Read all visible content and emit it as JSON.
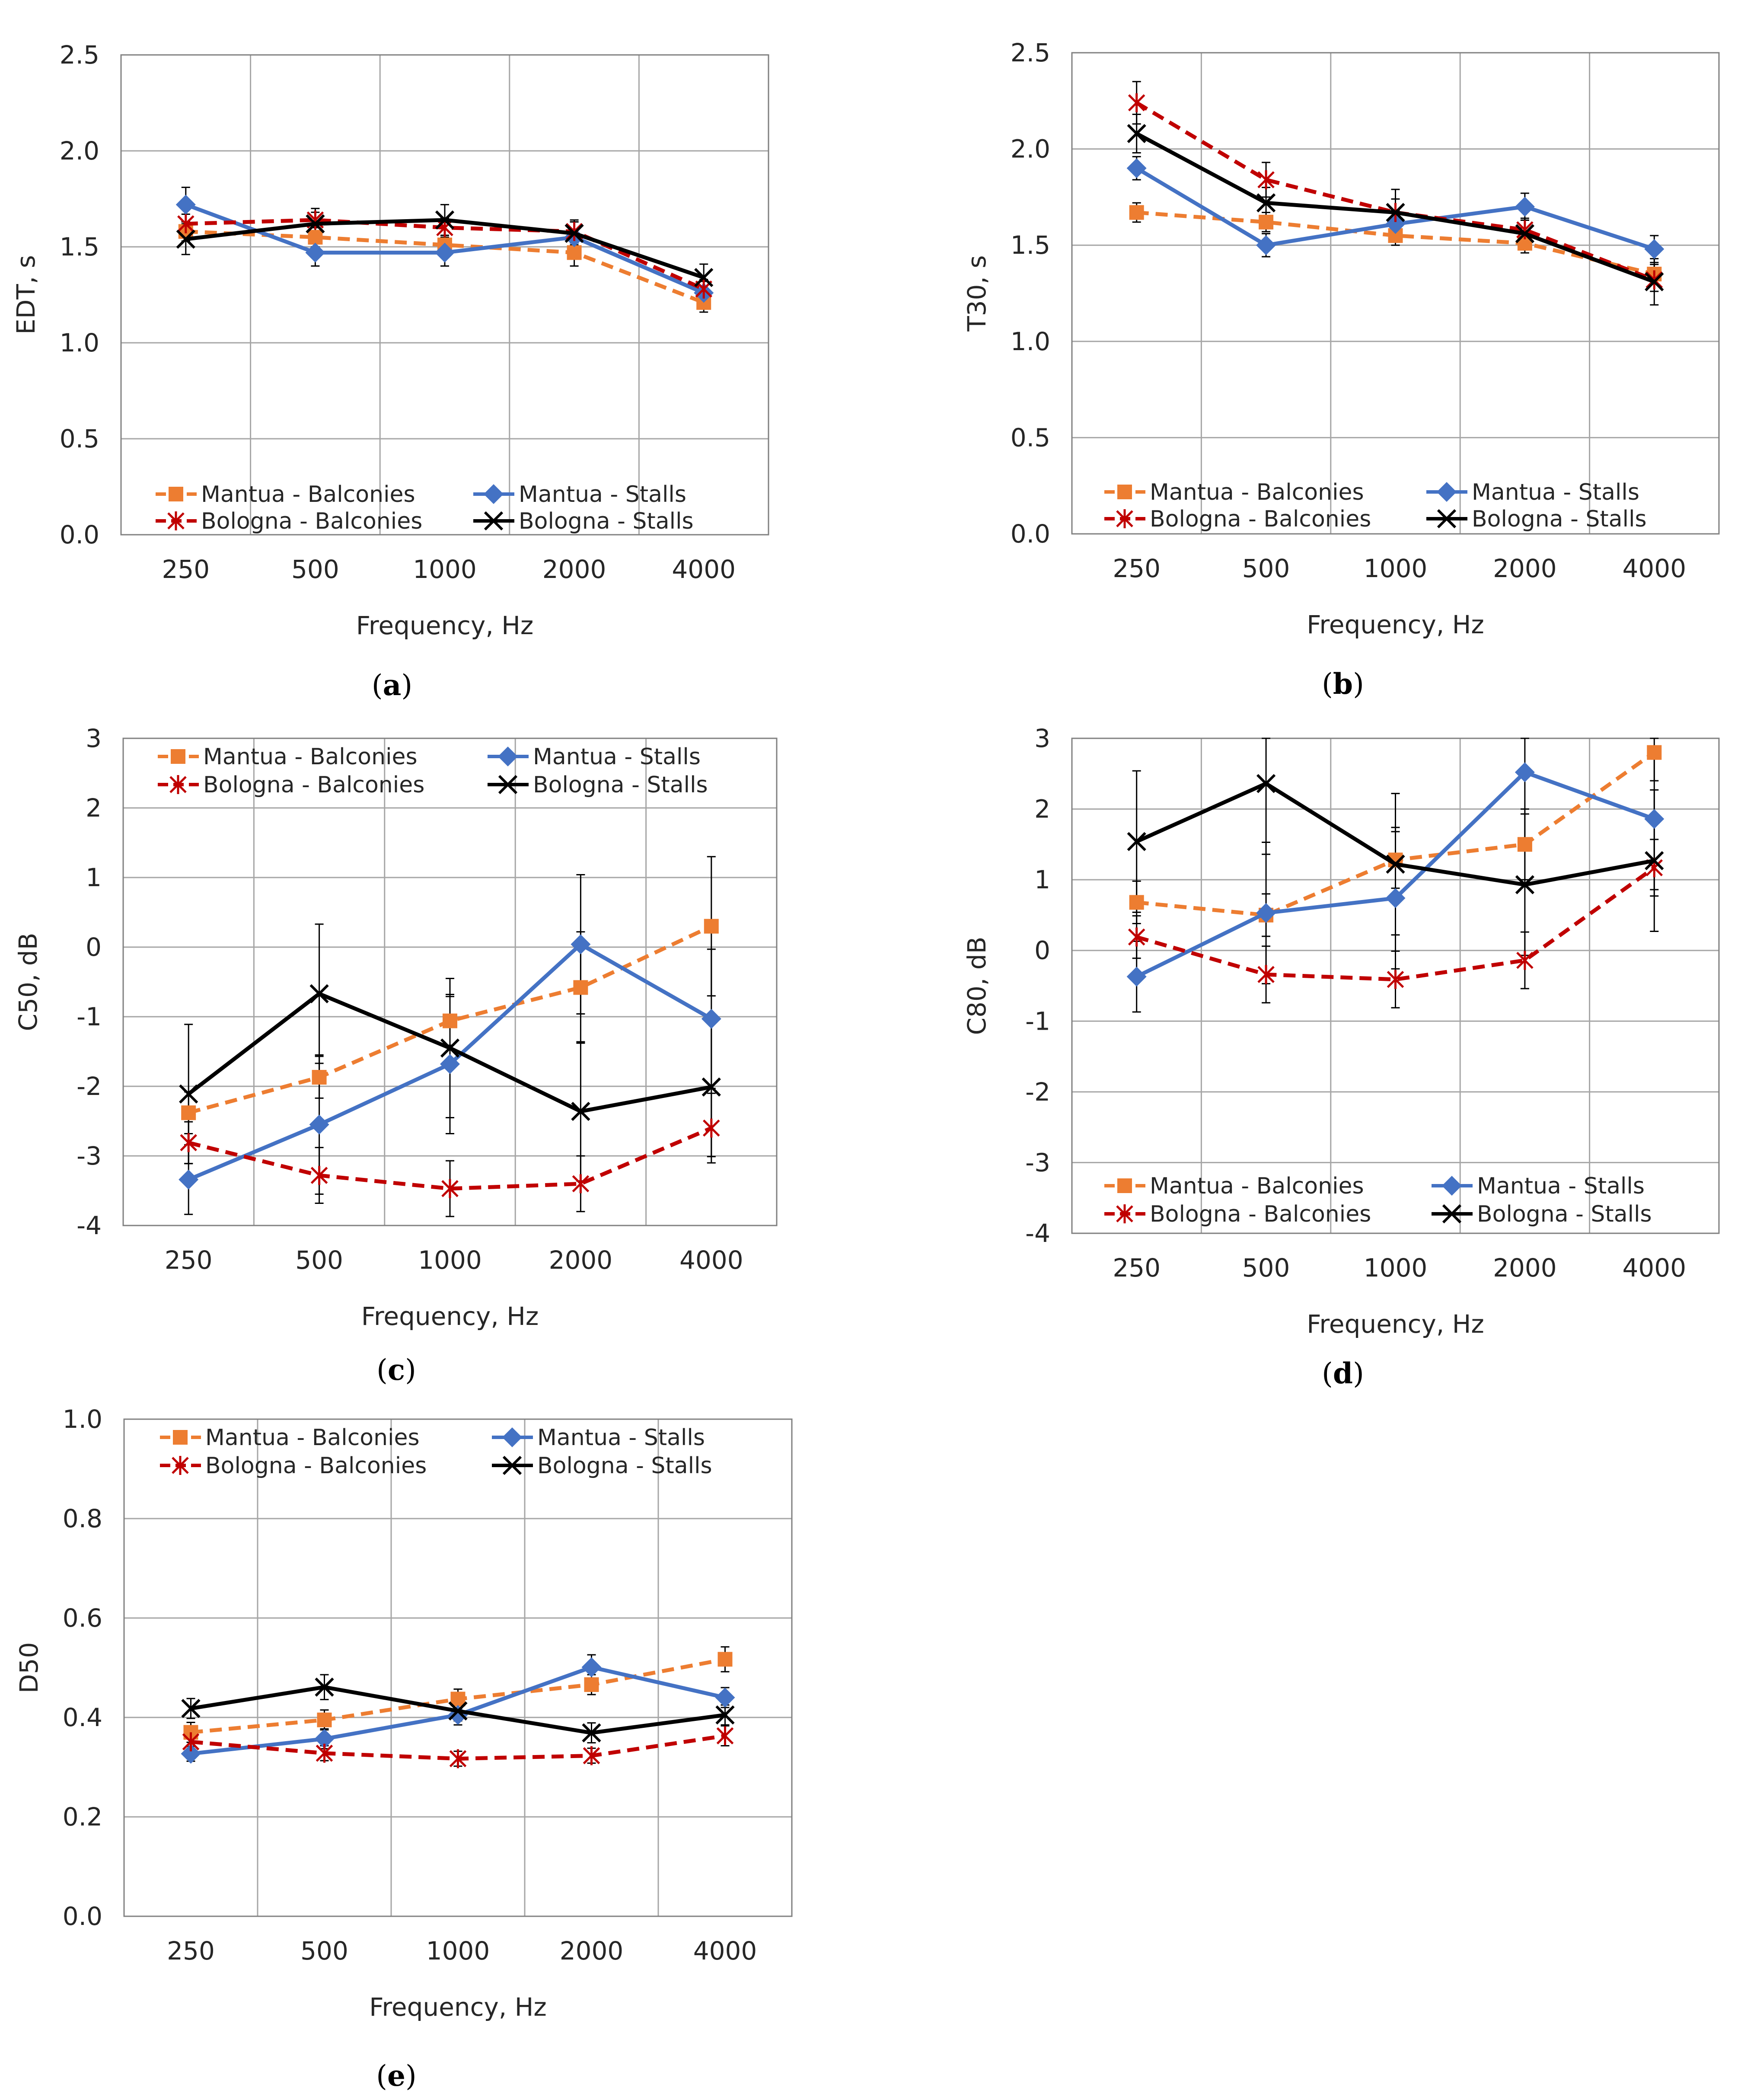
{
  "styles": {
    "mantua_balconies": {
      "color": "#ED7D31",
      "dash": "dashed",
      "marker": "square"
    },
    "mantua_stalls": {
      "color": "#4472C4",
      "dash": "solid",
      "marker": "diamond"
    },
    "bologna_balconies": {
      "color": "#C00000",
      "dash": "dashed",
      "marker": "asterisk"
    },
    "bologna_stalls": {
      "color": "#000000",
      "dash": "solid",
      "marker": "x"
    },
    "grid_color": "#A6A6A6",
    "frame_color": "#808080",
    "errorbar_color": "#000000"
  },
  "chart_data": [
    {
      "id": "a",
      "type": "line",
      "caption": "a",
      "categories": [
        "250",
        "500",
        "1000",
        "2000",
        "4000"
      ],
      "xlabel": "Frequency, Hz",
      "ylabel": "EDT, s",
      "ylim": [
        0,
        2.5
      ],
      "yticks": [
        "0.0",
        "0.5",
        "1.0",
        "1.5",
        "2.0",
        "2.5"
      ],
      "ystep": 0.5,
      "legend_position": "bottom",
      "grid": true,
      "series": [
        {
          "key": "mantua_balconies",
          "name": "Mantua - Balconies",
          "values": [
            1.58,
            1.55,
            1.51,
            1.47,
            1.21
          ],
          "err": [
            0.05,
            0.05,
            0.05,
            0.07,
            0.05
          ]
        },
        {
          "key": "mantua_stalls",
          "name": "Mantua - Stalls",
          "values": [
            1.72,
            1.47,
            1.47,
            1.55,
            1.26
          ],
          "err": [
            0.09,
            0.07,
            0.07,
            0.08,
            0.06
          ]
        },
        {
          "key": "bologna_balconies",
          "name": "Bologna - Balconies",
          "values": [
            1.62,
            1.64,
            1.6,
            1.58,
            1.28
          ],
          "err": [
            0.05,
            0.06,
            0.05,
            0.06,
            0.05
          ]
        },
        {
          "key": "bologna_stalls",
          "name": "Bologna - Stalls",
          "values": [
            1.54,
            1.62,
            1.64,
            1.57,
            1.34
          ],
          "err": [
            0.08,
            0.06,
            0.08,
            0.06,
            0.07
          ]
        }
      ]
    },
    {
      "id": "b",
      "type": "line",
      "caption": "b",
      "categories": [
        "250",
        "500",
        "1000",
        "2000",
        "4000"
      ],
      "xlabel": "Frequency, Hz",
      "ylabel": "T30, s",
      "ylim": [
        0,
        2.5
      ],
      "yticks": [
        "0.0",
        "0.5",
        "1.0",
        "1.5",
        "2.0",
        "2.5"
      ],
      "ystep": 0.5,
      "legend_position": "bottom",
      "grid": true,
      "series": [
        {
          "key": "mantua_balconies",
          "name": "Mantua - Balconies",
          "values": [
            1.67,
            1.62,
            1.55,
            1.51,
            1.35
          ],
          "err": [
            0.05,
            0.05,
            0.05,
            0.05,
            0.05
          ]
        },
        {
          "key": "mantua_stalls",
          "name": "Mantua - Stalls",
          "values": [
            1.9,
            1.5,
            1.61,
            1.7,
            1.48
          ],
          "err": [
            0.06,
            0.06,
            0.07,
            0.07,
            0.07
          ]
        },
        {
          "key": "bologna_balconies",
          "name": "Bologna - Balconies",
          "values": [
            2.24,
            1.84,
            1.67,
            1.58,
            1.32
          ],
          "err": [
            0.11,
            0.09,
            0.07,
            0.06,
            0.06
          ]
        },
        {
          "key": "bologna_stalls",
          "name": "Bologna - Stalls",
          "values": [
            2.08,
            1.72,
            1.67,
            1.56,
            1.31
          ],
          "err": [
            0.1,
            0.08,
            0.12,
            0.07,
            0.12
          ]
        }
      ]
    },
    {
      "id": "c",
      "type": "line",
      "caption": "c",
      "categories": [
        "250",
        "500",
        "1000",
        "2000",
        "4000"
      ],
      "xlabel": "Frequency, Hz",
      "ylabel": "C50, dB",
      "ylim": [
        -4,
        3
      ],
      "yticks": [
        "-4",
        "-3",
        "-2",
        "-1",
        "0",
        "1",
        "2",
        "3"
      ],
      "ystep": 1,
      "legend_position": "top",
      "grid": true,
      "series": [
        {
          "key": "mantua_balconies",
          "name": "Mantua - Balconies",
          "values": [
            -2.38,
            -1.87,
            -1.06,
            -0.58,
            0.3
          ],
          "err": [
            0.3,
            0.3,
            0.35,
            0.8,
            1.0
          ]
        },
        {
          "key": "mantua_stalls",
          "name": "Mantua - Stalls",
          "values": [
            -3.34,
            -2.55,
            -1.68,
            0.04,
            -1.03
          ],
          "err": [
            0.5,
            1.0,
            1.0,
            1.0,
            1.0
          ]
        },
        {
          "key": "bologna_balconies",
          "name": "Bologna - Balconies",
          "values": [
            -2.81,
            -3.28,
            -3.47,
            -3.4,
            -2.6
          ],
          "err": [
            0.3,
            0.4,
            0.4,
            0.4,
            0.5
          ]
        },
        {
          "key": "bologna_stalls",
          "name": "Bologna - Stalls",
          "values": [
            -2.11,
            -0.67,
            -1.45,
            -2.36,
            -2.01
          ],
          "err": [
            1.0,
            1.0,
            1.0,
            1.0,
            1.0
          ]
        }
      ]
    },
    {
      "id": "d",
      "type": "line",
      "caption": "d",
      "categories": [
        "250",
        "500",
        "1000",
        "2000",
        "4000"
      ],
      "xlabel": "Frequency, Hz",
      "ylabel": "C80, dB",
      "ylim": [
        -4,
        3
      ],
      "yticks": [
        "-4",
        "-3",
        "-2",
        "-1",
        "0",
        "1",
        "2",
        "3"
      ],
      "ystep": 1,
      "legend_position": "bottom",
      "grid": true,
      "series": [
        {
          "key": "mantua_balconies",
          "name": "Mantua - Balconies",
          "values": [
            0.68,
            0.5,
            1.28,
            1.5,
            2.8
          ],
          "err": [
            0.3,
            0.3,
            0.4,
            0.5,
            0.4
          ]
        },
        {
          "key": "mantua_stalls",
          "name": "Mantua - Stalls",
          "values": [
            -0.37,
            0.53,
            0.74,
            2.52,
            1.86
          ],
          "err": [
            0.5,
            1.0,
            1.0,
            1.0,
            1.0
          ]
        },
        {
          "key": "bologna_balconies",
          "name": "Bologna - Balconies",
          "values": [
            0.19,
            -0.34,
            -0.41,
            -0.14,
            1.17
          ],
          "err": [
            0.3,
            0.4,
            0.4,
            0.4,
            0.4
          ]
        },
        {
          "key": "bologna_stalls",
          "name": "Bologna - Stalls",
          "values": [
            1.54,
            2.36,
            1.22,
            0.93,
            1.27
          ],
          "err": [
            1.0,
            1.0,
            1.0,
            1.0,
            1.0
          ]
        }
      ]
    },
    {
      "id": "e",
      "type": "line",
      "caption": "e",
      "categories": [
        "250",
        "500",
        "1000",
        "2000",
        "4000"
      ],
      "xlabel": "Frequency, Hz",
      "ylabel": "D50",
      "ylim": [
        0,
        1
      ],
      "yticks": [
        "0.0",
        "0.2",
        "0.4",
        "0.6",
        "0.8",
        "1.0"
      ],
      "ystep": 0.2,
      "legend_position": "top",
      "grid": true,
      "series": [
        {
          "key": "mantua_balconies",
          "name": "Mantua - Balconies",
          "values": [
            0.37,
            0.395,
            0.437,
            0.466,
            0.517
          ],
          "err": [
            0.02,
            0.02,
            0.02,
            0.02,
            0.025
          ]
        },
        {
          "key": "mantua_stalls",
          "name": "Mantua - Stalls",
          "values": [
            0.327,
            0.357,
            0.405,
            0.501,
            0.44
          ],
          "err": [
            0.015,
            0.02,
            0.02,
            0.025,
            0.02
          ]
        },
        {
          "key": "bologna_balconies",
          "name": "Bologna - Balconies",
          "values": [
            0.351,
            0.328,
            0.317,
            0.323,
            0.363
          ],
          "err": [
            0.015,
            0.015,
            0.015,
            0.015,
            0.02
          ]
        },
        {
          "key": "bologna_stalls",
          "name": "Bologna - Stalls",
          "values": [
            0.418,
            0.461,
            0.413,
            0.369,
            0.405
          ],
          "err": [
            0.02,
            0.025,
            0.02,
            0.02,
            0.02
          ]
        }
      ]
    }
  ]
}
